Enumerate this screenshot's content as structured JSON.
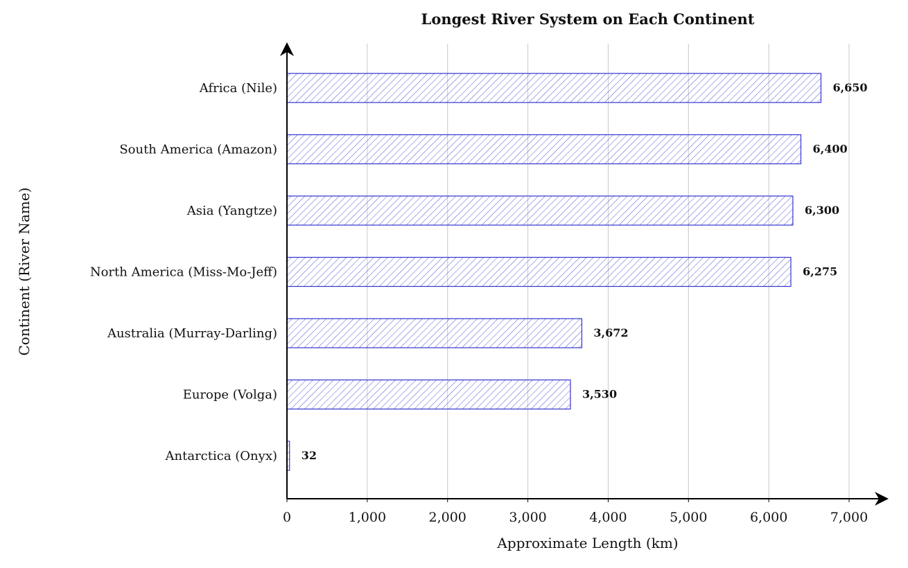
{
  "chart_data": {
    "type": "bar",
    "orientation": "horizontal",
    "title": "Longest River System on Each Continent",
    "xlabel": "Approximate Length (km)",
    "ylabel": "Continent (River Name)",
    "categories": [
      "Africa (Nile)",
      "South America (Amazon)",
      "Asia (Yangtze)",
      "North America (Miss-Mo-Jeff)",
      "Australia (Murray-Darling)",
      "Europe (Volga)",
      "Antarctica (Onyx)"
    ],
    "values": [
      6650,
      6400,
      6300,
      6275,
      3672,
      3530,
      32
    ],
    "value_labels": [
      "6,650",
      "6,400",
      "6,300",
      "6,275",
      "3,672",
      "3,530",
      "32"
    ],
    "xlim": [
      0,
      7000
    ],
    "xticks": [
      0,
      1000,
      2000,
      3000,
      4000,
      5000,
      6000,
      7000
    ],
    "xtick_labels": [
      "0",
      "1,000",
      "2,000",
      "3,000",
      "4,000",
      "5,000",
      "6,000",
      "7,000"
    ],
    "grid": "vertical",
    "bar_color": "#3333cc",
    "bar_fill": "hatched"
  }
}
